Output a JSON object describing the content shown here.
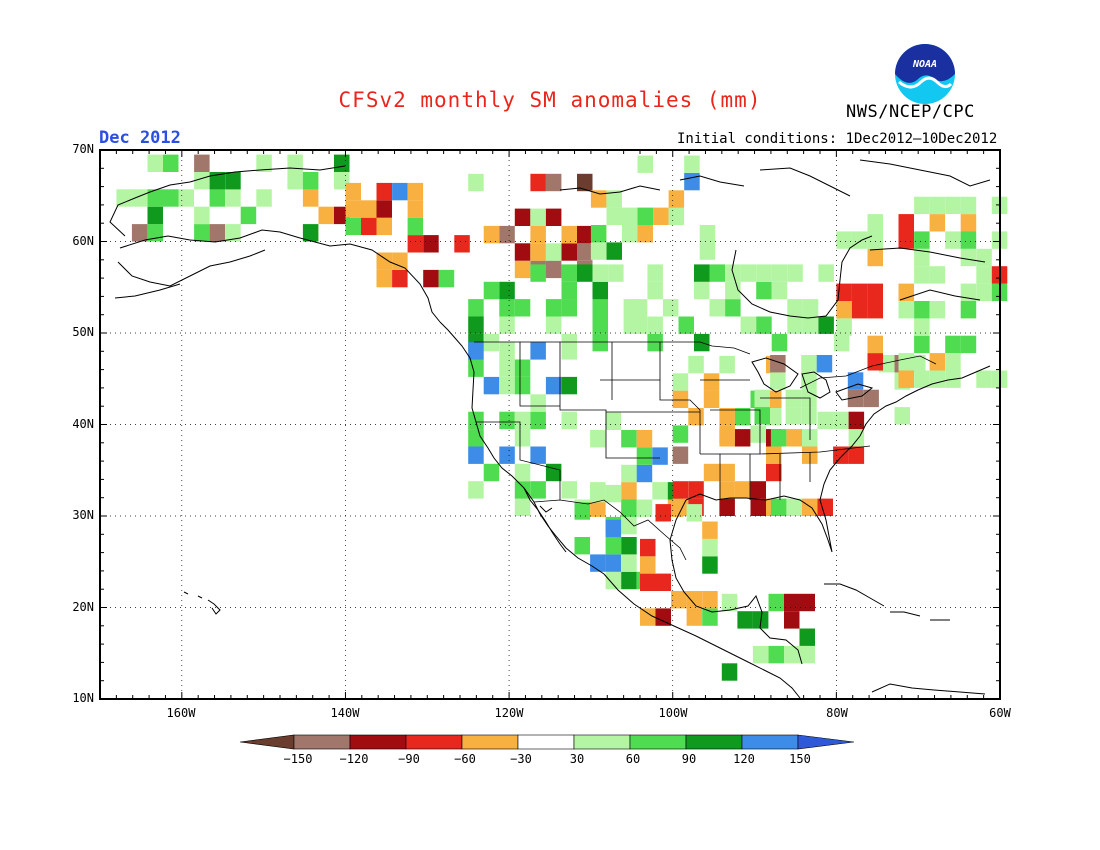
{
  "header": {
    "title": "CFSv2 monthly SM anomalies (mm)",
    "agency": "NWS/NCEP/CPC",
    "month": "Dec 2012",
    "initial_conditions": "Initial conditions: 1Dec2012–10Dec2012",
    "logo_text": "NOAA"
  },
  "map": {
    "lat_labels": [
      "70N",
      "60N",
      "50N",
      "40N",
      "30N",
      "20N",
      "10N"
    ],
    "lon_labels": [
      "160W",
      "140W",
      "120W",
      "100W",
      "80W",
      "60W"
    ],
    "lat_range": [
      10,
      70
    ],
    "lon_range": [
      -170,
      -60
    ]
  },
  "colorbar": {
    "labels": [
      "−150",
      "−120",
      "−90",
      "−60",
      "−30",
      "30",
      "60",
      "90",
      "120",
      "150"
    ],
    "colors": [
      "#6b3d2e",
      "#a0776a",
      "#a00c10",
      "#e8281c",
      "#f8b040",
      "#ffffff",
      "#b4f5a4",
      "#50dc50",
      "#0f9a1e",
      "#3c8ce8",
      "#2e5ad8"
    ]
  }
}
